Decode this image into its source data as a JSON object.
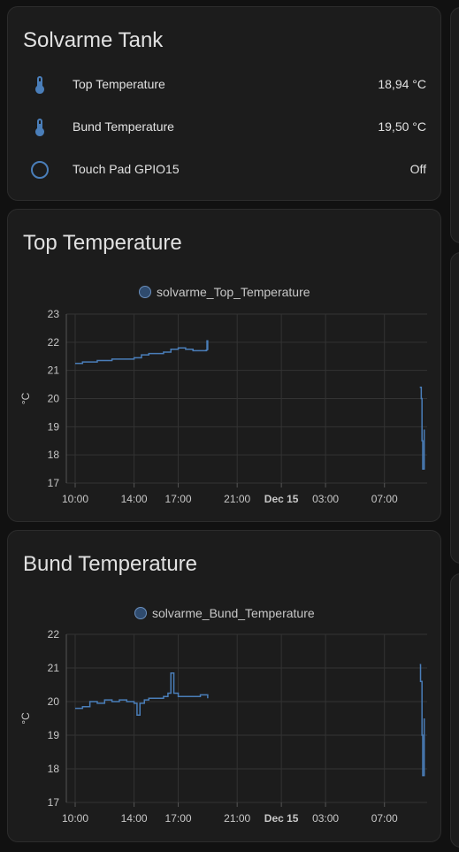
{
  "colors": {
    "accent": "#4a7eb9",
    "card_bg": "#1c1c1c",
    "page_bg": "#111111",
    "grid": "#333333"
  },
  "entities_card": {
    "title": "Solvarme Tank",
    "rows": [
      {
        "icon": "thermometer-icon",
        "name": "Top Temperature",
        "state": "18,94 °C"
      },
      {
        "icon": "thermometer-icon",
        "name": "Bund Temperature",
        "state": "19,50 °C"
      },
      {
        "icon": "circle-outline-icon",
        "name": "Touch Pad GPIO15",
        "state": "Off"
      }
    ]
  },
  "top_card": {
    "title": "Top Temperature"
  },
  "bund_card": {
    "title": "Bund Temperature"
  },
  "chart_data": [
    {
      "type": "line",
      "legend": "solvarme_Top_Temperature",
      "ylabel": "°C",
      "yticks": [
        "23",
        "22",
        "21",
        "20",
        "19",
        "18",
        "17"
      ],
      "ylim": [
        17,
        23
      ],
      "xticks": [
        "10:00",
        "14:00",
        "17:00",
        "21:00",
        "Dec 15",
        "03:00",
        "07:00"
      ],
      "xlim": [
        9.4,
        33.9
      ],
      "series": [
        {
          "x": [
            10.0,
            10.5,
            11.0,
            11.5,
            12.0,
            12.5,
            13.0,
            13.5,
            14.0,
            14.5,
            15.0,
            15.5,
            16.0,
            16.5,
            17.0,
            17.5,
            18.0,
            18.5,
            18.9,
            18.95,
            19.0
          ],
          "y": [
            21.25,
            21.3,
            21.3,
            21.35,
            21.35,
            21.4,
            21.4,
            21.4,
            21.45,
            21.55,
            21.6,
            21.6,
            21.65,
            21.75,
            21.8,
            21.75,
            21.7,
            21.7,
            21.72,
            22.05,
            21.72
          ]
        },
        {
          "x": [
            33.4,
            33.5,
            33.55,
            33.6,
            33.7
          ],
          "y": [
            20.4,
            20.0,
            18.5,
            17.5,
            18.9
          ]
        }
      ],
      "grid": true
    },
    {
      "type": "line",
      "legend": "solvarme_Bund_Temperature",
      "ylabel": "°C",
      "yticks": [
        "22",
        "21",
        "20",
        "19",
        "18",
        "17"
      ],
      "ylim": [
        17,
        22
      ],
      "xticks": [
        "10:00",
        "14:00",
        "17:00",
        "21:00",
        "Dec 15",
        "03:00",
        "07:00"
      ],
      "xlim": [
        9.4,
        33.9
      ],
      "series": [
        {
          "x": [
            10.0,
            10.5,
            11.0,
            11.5,
            12.0,
            12.5,
            13.0,
            13.5,
            14.0,
            14.2,
            14.4,
            14.7,
            15.0,
            15.5,
            16.0,
            16.3,
            16.5,
            16.7,
            17.0,
            17.5,
            18.0,
            18.5,
            19.0
          ],
          "y": [
            19.8,
            19.85,
            20.0,
            19.95,
            20.05,
            20.0,
            20.05,
            20.0,
            19.95,
            19.6,
            19.95,
            20.05,
            20.1,
            20.1,
            20.15,
            20.25,
            20.85,
            20.25,
            20.15,
            20.15,
            20.15,
            20.2,
            20.1
          ]
        },
        {
          "x": [
            33.4,
            33.45,
            33.5,
            33.55,
            33.6,
            33.7
          ],
          "y": [
            21.1,
            20.6,
            20.6,
            19.0,
            17.8,
            19.5
          ]
        }
      ],
      "grid": true
    }
  ]
}
